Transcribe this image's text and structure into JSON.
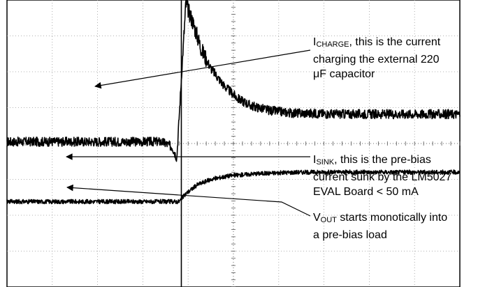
{
  "chart_data": {
    "type": "line",
    "title": "",
    "xlabel": "",
    "ylabel": "",
    "grid": true,
    "legend": "none",
    "grid_divisions": {
      "x": 10,
      "y": 8
    },
    "x_range": [
      -3.9,
      6.1
    ],
    "y_range": [
      -4,
      4
    ],
    "series": [
      {
        "id": "icharge",
        "color": "#000000",
        "points": [
          [
            -3.9,
            0.05
          ],
          [
            -0.5,
            0.05
          ],
          [
            -0.4,
            0.0
          ],
          [
            -0.25,
            -0.1
          ],
          [
            -0.15,
            -0.4
          ],
          [
            -0.05,
            1.8
          ],
          [
            0.05,
            3.9
          ],
          [
            0.2,
            3.4
          ],
          [
            0.4,
            2.6
          ],
          [
            0.6,
            2.1
          ],
          [
            0.9,
            1.6
          ],
          [
            1.2,
            1.25
          ],
          [
            1.5,
            1.05
          ],
          [
            1.9,
            0.92
          ],
          [
            2.4,
            0.85
          ],
          [
            3.5,
            0.82
          ],
          [
            6.1,
            0.82
          ]
        ],
        "noise": 0.13
      },
      {
        "id": "vout",
        "color": "#000000",
        "points": [
          [
            -3.9,
            -1.62
          ],
          [
            -0.1,
            -1.62
          ],
          [
            0.05,
            -1.4
          ],
          [
            0.3,
            -1.15
          ],
          [
            0.6,
            -1.0
          ],
          [
            1.0,
            -0.9
          ],
          [
            1.6,
            -0.84
          ],
          [
            2.5,
            -0.8
          ],
          [
            4.0,
            -0.8
          ],
          [
            6.1,
            -0.8
          ]
        ],
        "noise": 0.06
      }
    ]
  },
  "annotations": [
    {
      "id": "charge",
      "lines": [
        {
          "main": "I",
          "sub": "CHARGE",
          "rest": ", this is the current"
        },
        {
          "text": "charging the external 220"
        },
        {
          "text": "μF capacitor"
        }
      ]
    },
    {
      "id": "sink",
      "lines": [
        {
          "main": "I",
          "sub": "SINK",
          "rest": ", this is the pre-bias"
        },
        {
          "text": "current sunk by the LM5027"
        },
        {
          "text": "EVAL Board < 50 mA"
        }
      ]
    },
    {
      "id": "vout",
      "lines": [
        {
          "main": "V",
          "sub": "OUT",
          "rest": " starts monotically into"
        },
        {
          "text": "a pre-bias load"
        }
      ]
    }
  ]
}
